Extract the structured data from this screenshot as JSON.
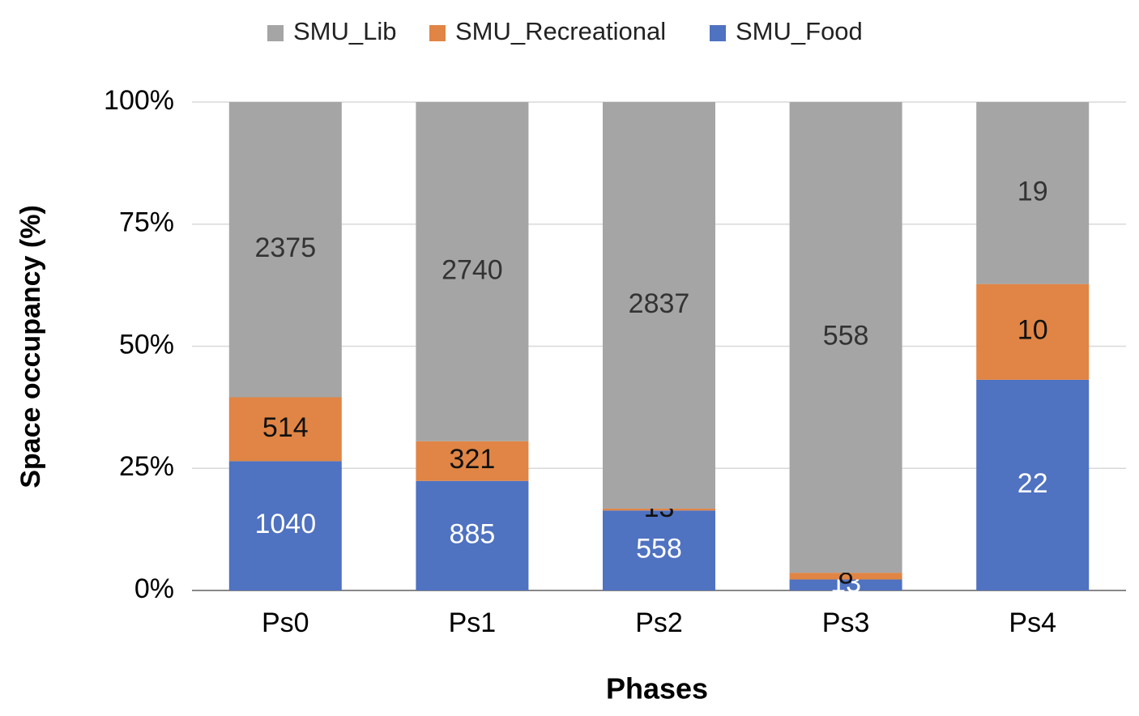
{
  "chart_data": {
    "type": "bar",
    "stacking": "percent",
    "xlabel": "Phases",
    "ylabel": "Space occupancy (%)",
    "categories": [
      "Ps0",
      "Ps1",
      "Ps2",
      "Ps3",
      "Ps4"
    ],
    "series": [
      {
        "name": "SMU_Lib",
        "color": "#a5a5a5",
        "values": [
          2375,
          2740,
          2837,
          558,
          19
        ]
      },
      {
        "name": "SMU_Recreational",
        "color": "#e08545",
        "values": [
          514,
          321,
          13,
          8,
          10
        ]
      },
      {
        "name": "SMU_Food",
        "color": "#4f72c1",
        "values": [
          1040,
          885,
          558,
          13,
          22
        ]
      }
    ],
    "ylim": [
      0,
      100
    ],
    "yticks": [
      {
        "value": 0,
        "label": "0%"
      },
      {
        "value": 25,
        "label": "25%"
      },
      {
        "value": 50,
        "label": "50%"
      },
      {
        "value": 75,
        "label": "75%"
      },
      {
        "value": 100,
        "label": "100%"
      }
    ],
    "grid": true,
    "legend": "top"
  }
}
